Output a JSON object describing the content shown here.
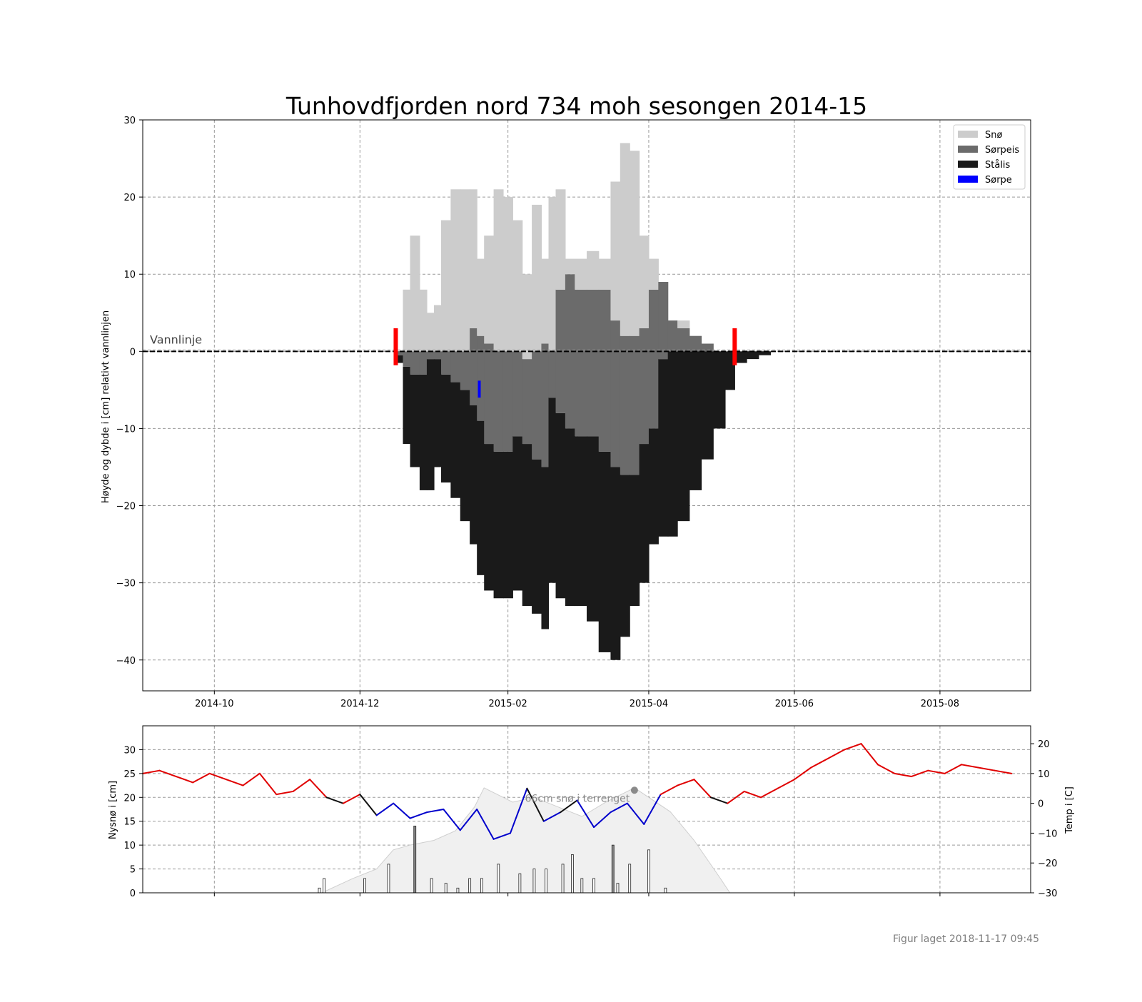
{
  "chart_data": [
    {
      "type": "bar",
      "title": "Tunhovdfjorden nord 734 moh sesongen 2014-15",
      "ylabel": "Høyde og dybde i [cm] relativt vannlinjen",
      "ylim": [
        -44,
        30
      ],
      "yticks": [
        30,
        20,
        10,
        0,
        -10,
        -20,
        -30,
        -40
      ],
      "xlim": [
        "2014-09-01",
        "2015-09-08"
      ],
      "xticks": [
        "2014-10",
        "2014-12",
        "2015-02",
        "2015-04",
        "2015-06",
        "2015-08"
      ],
      "grid": true,
      "waterline_label": "Vannlinje",
      "legend_position": "top-right",
      "legend": [
        {
          "name": "Snø",
          "color": "#cccccc"
        },
        {
          "name": "Sørpeis",
          "color": "#6b6b6b"
        },
        {
          "name": "Stålis",
          "color": "#1a1a1a"
        },
        {
          "name": "Sørpe",
          "color": "#0000ff"
        }
      ],
      "ice_on_date": "2014-12-16",
      "ice_off_date": "2015-05-07",
      "slush_marker": {
        "date": "2015-01-20",
        "from": -3.8,
        "to": -6
      },
      "dates": [
        "2014-12-16",
        "2014-12-19",
        "2014-12-22",
        "2014-12-26",
        "2014-12-29",
        "2015-01-01",
        "2015-01-04",
        "2015-01-08",
        "2015-01-12",
        "2015-01-16",
        "2015-01-19",
        "2015-01-22",
        "2015-01-26",
        "2015-01-30",
        "2015-02-03",
        "2015-02-07",
        "2015-02-11",
        "2015-02-15",
        "2015-02-18",
        "2015-02-21",
        "2015-02-25",
        "2015-03-01",
        "2015-03-02",
        "2015-03-06",
        "2015-03-11",
        "2015-03-16",
        "2015-03-20",
        "2015-03-24",
        "2015-03-28",
        "2015-04-01",
        "2015-04-05",
        "2015-04-09",
        "2015-04-13",
        "2015-04-18",
        "2015-04-23",
        "2015-04-28",
        "2015-05-03",
        "2015-05-07",
        "2015-05-12",
        "2015-05-17",
        "2015-05-22",
        "2015-05-27",
        "2015-06-01",
        "2015-06-03"
      ],
      "snow_top": [
        0,
        8,
        15,
        8,
        5,
        6,
        17,
        21,
        21,
        21,
        12,
        15,
        21,
        20,
        17,
        10,
        19,
        12,
        20,
        21,
        12,
        12,
        12,
        13,
        12,
        22,
        27,
        26,
        15,
        12,
        4,
        4,
        4,
        0,
        0,
        0,
        0,
        0,
        0,
        0,
        0,
        0,
        0,
        0
      ],
      "slush_ice_top": [
        0,
        0,
        0,
        0,
        0,
        0,
        0,
        0,
        0,
        3,
        2,
        1,
        0,
        0,
        0,
        -1,
        0,
        1,
        0,
        8,
        10,
        8,
        8,
        8,
        8,
        4,
        2,
        2,
        3,
        8,
        9,
        4,
        3,
        2,
        1,
        0,
        0,
        0,
        0,
        0,
        0,
        0,
        0,
        0
      ],
      "slush_ice_bottom": [
        -0.5,
        -2,
        -3,
        -3,
        -1,
        -1,
        -3,
        -4,
        -5,
        -7,
        -9,
        -12,
        -13,
        -13,
        -11,
        -12,
        -14,
        -15,
        -6,
        -8,
        -10,
        -11,
        -11,
        -11,
        -13,
        -15,
        -16,
        -16,
        -12,
        -10,
        -1,
        0,
        0,
        0,
        0,
        0,
        0,
        0,
        0,
        0,
        0,
        0,
        0,
        0
      ],
      "ice_bottom": [
        -1.5,
        -12,
        -15,
        -18,
        -18,
        -15,
        -17,
        -19,
        -22,
        -25,
        -29,
        -31,
        -32,
        -32,
        -31,
        -33,
        -34,
        -36,
        -30,
        -32,
        -33,
        -33,
        -33,
        -35,
        -39,
        -40,
        -37,
        -33,
        -30,
        -25,
        -24,
        -24,
        -22,
        -18,
        -14,
        -10,
        -5,
        -1.5,
        -1,
        -0.5,
        0,
        0,
        0,
        0
      ]
    },
    {
      "type": "line",
      "ylabel": "Nysnø i [cm]",
      "ylabel_right": "Temp i [C]",
      "ylim": [
        0,
        35
      ],
      "ylim_right": [
        -30,
        26
      ],
      "yticks": [
        0,
        5,
        10,
        15,
        20,
        25,
        30
      ],
      "yticks_right": [
        -30,
        -20,
        -10,
        0,
        10,
        20
      ],
      "annotation": "66cm snø i terrenget",
      "annotation_marker": {
        "date": "2015-03-26",
        "value": 21.5
      },
      "temperature_colors": {
        "warm": "#e00000",
        "cold": "#0000cc",
        "neutral": "#111111"
      },
      "temp_dates": [
        "2014-09-01",
        "2014-09-08",
        "2014-09-15",
        "2014-09-22",
        "2014-09-29",
        "2014-10-06",
        "2014-10-13",
        "2014-10-20",
        "2014-10-27",
        "2014-11-03",
        "2014-11-10",
        "2014-11-17",
        "2014-11-24",
        "2014-12-01",
        "2014-12-08",
        "2014-12-15",
        "2014-12-22",
        "2014-12-29",
        "2015-01-05",
        "2015-01-12",
        "2015-01-19",
        "2015-01-26",
        "2015-02-02",
        "2015-02-09",
        "2015-02-16",
        "2015-02-23",
        "2015-03-02",
        "2015-03-09",
        "2015-03-16",
        "2015-03-23",
        "2015-03-30",
        "2015-04-06",
        "2015-04-13",
        "2015-04-20",
        "2015-04-27",
        "2015-05-04",
        "2015-05-11",
        "2015-05-18",
        "2015-05-25",
        "2015-06-01",
        "2015-06-08",
        "2015-06-15",
        "2015-06-22",
        "2015-06-29",
        "2015-07-06",
        "2015-07-13",
        "2015-07-20",
        "2015-07-27",
        "2015-08-03",
        "2015-08-10",
        "2015-08-17",
        "2015-08-24",
        "2015-08-31"
      ],
      "temperature": [
        10,
        11,
        9,
        7,
        10,
        8,
        6,
        10,
        3,
        4,
        8,
        2,
        0,
        3,
        -4,
        0,
        -5,
        -3,
        -2,
        -9,
        -2,
        -12,
        -10,
        5,
        -6,
        -3,
        1,
        -8,
        -3,
        0,
        -7,
        3,
        6,
        8,
        2,
        0,
        4,
        2,
        5,
        8,
        12,
        15,
        18,
        20,
        13,
        10,
        9,
        11,
        10,
        13,
        12,
        11,
        10
      ],
      "snow_dates": [
        "2014-11-14",
        "2014-11-16",
        "2014-12-03",
        "2014-12-13",
        "2014-12-24",
        "2014-12-31",
        "2015-01-06",
        "2015-01-11",
        "2015-01-16",
        "2015-01-21",
        "2015-01-28",
        "2015-02-06",
        "2015-02-12",
        "2015-02-17",
        "2015-02-24",
        "2015-02-28",
        "2015-03-04",
        "2015-03-09",
        "2015-03-17",
        "2015-03-19",
        "2015-03-24",
        "2015-04-01",
        "2015-04-08"
      ],
      "new_snow": [
        1,
        3,
        3,
        6,
        14,
        3,
        2,
        1,
        3,
        3,
        6,
        4,
        5,
        5,
        6,
        8,
        3,
        3,
        10,
        2,
        6,
        9,
        1
      ],
      "snow_depth_dates": [
        "2014-11-15",
        "2014-11-28",
        "2014-12-08",
        "2014-12-15",
        "2014-12-22",
        "2015-01-01",
        "2015-01-10",
        "2015-01-18",
        "2015-01-22",
        "2015-02-03",
        "2015-02-12",
        "2015-02-22",
        "2015-03-04",
        "2015-03-14",
        "2015-03-26",
        "2015-04-10",
        "2015-04-20",
        "2015-05-01",
        "2015-05-05"
      ],
      "snow_depth": [
        0,
        3,
        5,
        9,
        10,
        11,
        13,
        18,
        22,
        19,
        20,
        18,
        16,
        19,
        22,
        17,
        11,
        3,
        0
      ]
    }
  ],
  "footer": "Figur laget 2018-11-17 09:45"
}
